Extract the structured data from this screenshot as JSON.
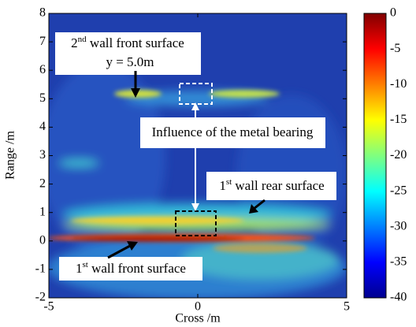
{
  "chart_data": {
    "type": "heatmap",
    "xlabel": "Cross /m",
    "ylabel": "Range /m",
    "xlim": [
      -5,
      5
    ],
    "xticks": [
      -5,
      0,
      5
    ],
    "ylim": [
      -2,
      8
    ],
    "yticks": [
      -2,
      -1,
      0,
      1,
      2,
      3,
      4,
      5,
      6,
      7,
      8
    ],
    "colorbar": {
      "lim": [
        -40,
        0
      ],
      "ticks": [
        0,
        -5,
        -10,
        -15,
        -20,
        -25,
        -30,
        -35,
        -40
      ]
    },
    "annotations": [
      {
        "parts": [
          "2",
          "nd",
          " wall front surface"
        ]
      },
      {
        "parts": [
          "y = 5.0m"
        ]
      },
      {
        "parts": [
          "Influence of the metal bearing"
        ]
      },
      {
        "parts": [
          "1",
          "st",
          " wall rear surface"
        ]
      },
      {
        "parts": [
          "1",
          "st",
          " wall front surface"
        ]
      }
    ]
  }
}
